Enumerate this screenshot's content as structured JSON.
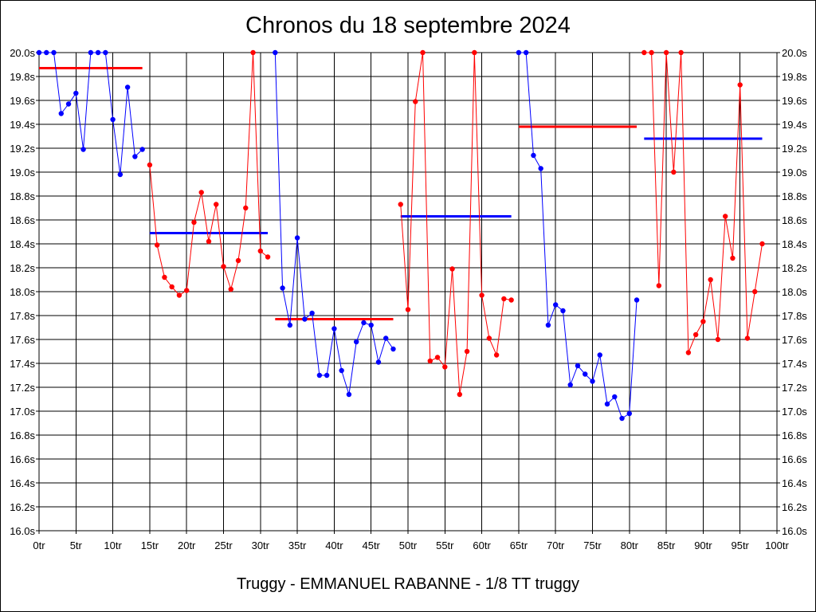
{
  "title": "Chronos du 18 septembre 2024",
  "subtitle": "Truggy - EMMANUEL RABANNE - 1/8 TT truggy",
  "chart_data": {
    "type": "line",
    "title": "Chronos du 18 septembre 2024",
    "xlim": [
      0,
      100
    ],
    "ylim": [
      16.0,
      20.0
    ],
    "grid": true,
    "x_ticks": [
      "0tr",
      "5tr",
      "10tr",
      "15tr",
      "20tr",
      "25tr",
      "30tr",
      "35tr",
      "40tr",
      "45tr",
      "50tr",
      "55tr",
      "60tr",
      "65tr",
      "70tr",
      "75tr",
      "80tr",
      "85tr",
      "90tr",
      "95tr",
      "100tr"
    ],
    "y_ticks": [
      "16.0s",
      "16.2s",
      "16.4s",
      "16.6s",
      "16.8s",
      "17.0s",
      "17.2s",
      "17.4s",
      "17.6s",
      "17.8s",
      "18.0s",
      "18.2s",
      "18.4s",
      "18.6s",
      "18.8s",
      "19.0s",
      "19.2s",
      "19.4s",
      "19.6s",
      "19.8s",
      "20.0s"
    ],
    "colors": {
      "blue": "#0000ff",
      "red": "#ff0000"
    },
    "series": [
      {
        "color": "#0000ff",
        "x": [
          0,
          1,
          2,
          3,
          4,
          5,
          6,
          7,
          8,
          9,
          10,
          11,
          12,
          13,
          14
        ],
        "y": [
          20.0,
          20.0,
          20.0,
          19.49,
          19.57,
          19.66,
          19.19,
          20.0,
          20.0,
          20.0,
          19.44,
          18.98,
          19.71,
          19.13,
          19.19
        ]
      },
      {
        "color": "#ff0000",
        "x": [
          15,
          16,
          17,
          18,
          19,
          20,
          21,
          22,
          23,
          24,
          25,
          26,
          27,
          28,
          29,
          30,
          31
        ],
        "y": [
          19.06,
          18.39,
          18.12,
          18.04,
          17.97,
          18.01,
          18.58,
          18.83,
          18.42,
          18.73,
          18.21,
          18.02,
          18.26,
          18.7,
          20.0,
          18.34,
          18.29
        ]
      },
      {
        "color": "#0000ff",
        "x": [
          32,
          33,
          34,
          35,
          36,
          37,
          38,
          39,
          40,
          41,
          42,
          43,
          44,
          45,
          46,
          47,
          48
        ],
        "y": [
          20.0,
          18.03,
          17.72,
          18.45,
          17.77,
          17.82,
          17.3,
          17.3,
          17.69,
          17.34,
          17.14,
          17.58,
          17.74,
          17.72,
          17.41,
          17.61,
          17.52
        ]
      },
      {
        "color": "#ff0000",
        "x": [
          49,
          50,
          51,
          52,
          53,
          54,
          55,
          56,
          57,
          58,
          59,
          60,
          61,
          62,
          63,
          64
        ],
        "y": [
          18.73,
          17.85,
          19.59,
          20.0,
          17.42,
          17.45,
          17.37,
          18.19,
          17.14,
          17.5,
          20.0,
          17.97,
          17.61,
          17.47,
          17.94,
          17.93
        ]
      },
      {
        "color": "#0000ff",
        "x": [
          65,
          66,
          67,
          68,
          69,
          70,
          71,
          72,
          73,
          74,
          75,
          76,
          77,
          78,
          79,
          80,
          81
        ],
        "y": [
          20.0,
          20.0,
          19.14,
          19.03,
          17.72,
          17.89,
          17.84,
          17.22,
          17.38,
          17.31,
          17.25,
          17.47,
          17.06,
          17.12,
          16.94,
          16.98,
          17.93
        ]
      },
      {
        "color": "#ff0000",
        "x": [
          82,
          83,
          84,
          85,
          86,
          87,
          88,
          89,
          90,
          91,
          92,
          93,
          94,
          95,
          96,
          97,
          98
        ],
        "y": [
          20.0,
          20.0,
          18.05,
          20.0,
          19.0,
          20.0,
          17.49,
          17.64,
          17.75,
          18.1,
          17.6,
          18.63,
          18.28,
          19.73,
          17.61,
          18.0,
          18.4
        ]
      }
    ],
    "averages": [
      {
        "color": "#ff0000",
        "x_start": 0,
        "x_end": 14,
        "y": 19.87
      },
      {
        "color": "#0000ff",
        "x_start": 15,
        "x_end": 31,
        "y": 18.49
      },
      {
        "color": "#ff0000",
        "x_start": 32,
        "x_end": 48,
        "y": 17.77
      },
      {
        "color": "#0000ff",
        "x_start": 49,
        "x_end": 64,
        "y": 18.63
      },
      {
        "color": "#ff0000",
        "x_start": 65,
        "x_end": 81,
        "y": 19.38
      },
      {
        "color": "#0000ff",
        "x_start": 82,
        "x_end": 98,
        "y": 19.28
      }
    ]
  }
}
